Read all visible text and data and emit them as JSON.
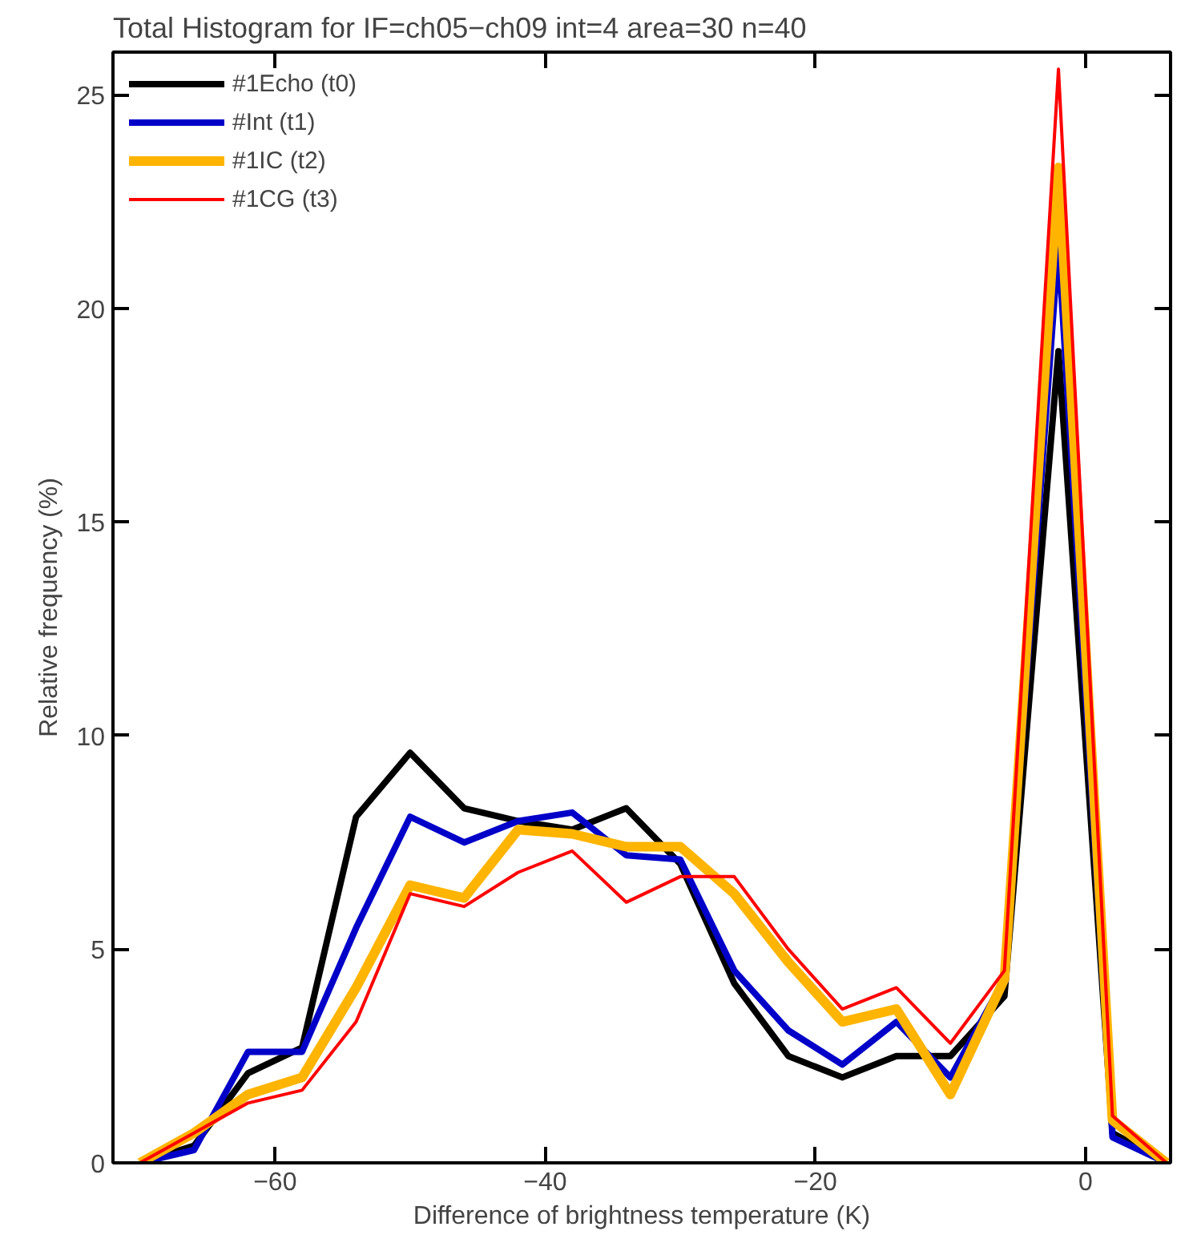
{
  "chart_data": {
    "type": "line",
    "title": "Total Histogram for IF=ch05−ch09 int=4 area=30 n=40",
    "xlabel": "Difference of brightness temperature (K)",
    "ylabel": "Relative frequency (%)",
    "x": [
      -70,
      -66,
      -62,
      -58,
      -54,
      -50,
      -46,
      -42,
      -38,
      -34,
      -30,
      -26,
      -22,
      -18,
      -14,
      -10,
      -6,
      -2,
      2,
      6
    ],
    "series": [
      {
        "name": "#1Echo (t0)",
        "color": "#000000",
        "values": [
          0,
          0.4,
          2.1,
          2.7,
          8.1,
          9.6,
          8.3,
          8.0,
          7.8,
          8.3,
          7.0,
          4.2,
          2.5,
          2.0,
          2.5,
          2.5,
          3.9,
          19.0,
          0.7,
          0
        ]
      },
      {
        "name": "#Int (t1)",
        "color": "#0000c8",
        "values": [
          0,
          0.3,
          2.6,
          2.6,
          5.5,
          8.1,
          7.5,
          8.0,
          8.2,
          7.2,
          7.1,
          4.5,
          3.1,
          2.3,
          3.3,
          2.0,
          4.3,
          21.5,
          0.6,
          0
        ]
      },
      {
        "name": "#1IC (t2)",
        "color": "#ffb400",
        "values": [
          0,
          0.7,
          1.6,
          2.0,
          4.1,
          6.5,
          6.2,
          7.8,
          7.7,
          7.4,
          7.4,
          6.3,
          4.7,
          3.3,
          3.6,
          1.6,
          4.3,
          23.3,
          1.0,
          0
        ]
      },
      {
        "name": "#1CG (t3)",
        "color": "#ff0000",
        "values": [
          0,
          0.7,
          1.4,
          1.7,
          3.3,
          6.3,
          6.0,
          6.8,
          7.3,
          6.1,
          6.7,
          6.7,
          5.0,
          3.6,
          4.1,
          2.8,
          4.5,
          25.6,
          1.1,
          0
        ]
      }
    ],
    "xlim": [
      -72,
      6.3
    ],
    "ylim": [
      0,
      26
    ],
    "xticks": [
      {
        "value": -60,
        "label": "−60"
      },
      {
        "value": -40,
        "label": "−40"
      },
      {
        "value": -20,
        "label": "−20"
      },
      0
    ],
    "yticks": [
      0,
      5,
      10,
      15,
      20,
      25
    ],
    "grid": false,
    "legend": "top left",
    "line_style": "solid"
  }
}
